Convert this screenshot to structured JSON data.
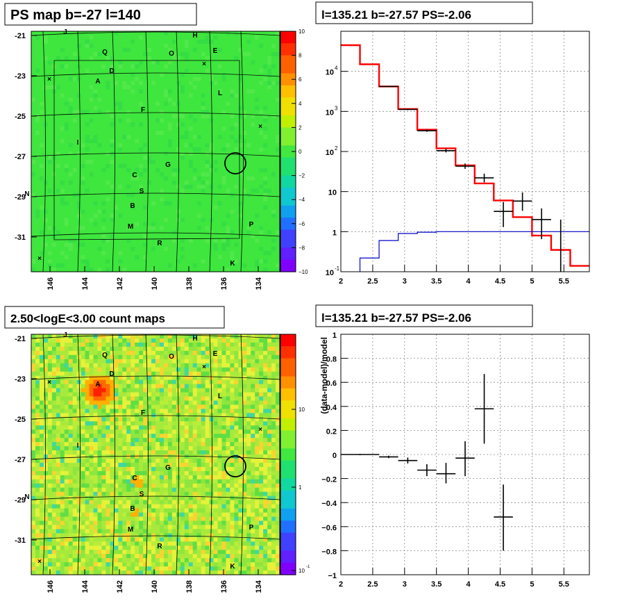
{
  "panels": {
    "ps_map": {
      "title": "PS map b=-27 l=140",
      "colorbar": {
        "min": -10,
        "max": 10,
        "ticks": [
          "10",
          "8",
          "6",
          "4",
          "2",
          "0",
          "−2",
          "−4",
          "−6",
          "−8",
          "−10"
        ]
      }
    },
    "count_map": {
      "title": "2.50<logE<3.00 count maps",
      "colorbar": {
        "ticks": [
          "10",
          "1",
          "10"
        ],
        "tick_exp": "-1"
      }
    },
    "spectrum": {
      "title": "l=135.21 b=-27.57 PS=-2.06"
    },
    "residual": {
      "title": "l=135.21 b=-27.57 PS=-2.06",
      "ylabel": "(data-model)/model"
    }
  },
  "map_axes": {
    "y_ticks": [
      "-21",
      "-23",
      "-25",
      "-27",
      "-29",
      "-31"
    ],
    "x_ticks": [
      "146",
      "144",
      "142",
      "140",
      "138",
      "136",
      "134"
    ]
  },
  "sources": [
    "J",
    "H",
    "Q",
    "O",
    "E",
    "D",
    "A",
    "L",
    "F",
    "I",
    "G",
    "C",
    "N",
    "S",
    "B",
    "M",
    "P",
    "R",
    "K"
  ],
  "colors": {
    "map_green": "#3ee63e",
    "data": "#000000",
    "model": "#ff0000",
    "background_model": "#0000cc",
    "hot": "#ff2000"
  },
  "chart_data": [
    {
      "type": "line",
      "title": "l=135.21 b=-27.57 PS=-2.06",
      "xlabel": "",
      "ylabel": "",
      "xlim": [
        2,
        5.9
      ],
      "ylim": [
        0.1,
        100000
      ],
      "yscale": "log",
      "x_ticks": [
        "2",
        "2.5",
        "3",
        "3.5",
        "4",
        "4.5",
        "5",
        "5.5"
      ],
      "y_ticks": [
        "10^-1",
        "1",
        "10",
        "10^2",
        "10^3",
        "10^4"
      ],
      "grid": true,
      "series": [
        {
          "role": "model",
          "bin_edges": [
            2.0,
            2.3,
            2.6,
            2.9,
            3.2,
            3.5,
            3.8,
            4.1,
            4.4,
            4.7,
            5.0,
            5.3,
            5.6,
            5.9
          ],
          "values": [
            45000,
            15000,
            4200,
            1150,
            350,
            120,
            45,
            16,
            6,
            2.3,
            0.8,
            0.35,
            0.14
          ]
        },
        {
          "role": "background",
          "bin_edges": [
            2.3,
            2.6,
            2.9,
            3.2,
            3.5,
            3.8,
            4.1,
            4.4,
            4.7,
            5.0,
            5.3,
            5.6,
            5.9
          ],
          "values": [
            0.22,
            0.6,
            0.9,
            0.97,
            1.0,
            1.0,
            1.0,
            1.0,
            1.0,
            1.0,
            1.0,
            1.0
          ]
        },
        {
          "role": "data",
          "points": [
            {
              "x": 2.75,
              "y": 4200,
              "ylo": 4150,
              "yhi": 4250,
              "xerr": 0.15
            },
            {
              "x": 3.05,
              "y": 1120,
              "ylo": 1080,
              "yhi": 1160,
              "xerr": 0.15
            },
            {
              "x": 3.35,
              "y": 330,
              "ylo": 310,
              "yhi": 350,
              "xerr": 0.15
            },
            {
              "x": 3.65,
              "y": 105,
              "ylo": 95,
              "yhi": 116,
              "xerr": 0.15
            },
            {
              "x": 3.95,
              "y": 43,
              "ylo": 37,
              "yhi": 50,
              "xerr": 0.15
            },
            {
              "x": 4.25,
              "y": 22,
              "ylo": 17,
              "yhi": 28,
              "xerr": 0.15
            },
            {
              "x": 4.55,
              "y": 3.2,
              "ylo": 1.3,
              "yhi": 5.5,
              "xerr": 0.15
            },
            {
              "x": 4.85,
              "y": 5.8,
              "ylo": 3.3,
              "yhi": 9.5,
              "xerr": 0.15
            },
            {
              "x": 5.15,
              "y": 2.0,
              "ylo": 0.65,
              "yhi": 3.8,
              "xerr": 0.15
            },
            {
              "x": 5.45,
              "y": 0.5,
              "ylo": 0.1,
              "yhi": 2.0,
              "xerr": 0.0
            }
          ]
        }
      ]
    },
    {
      "type": "scatter",
      "title": "l=135.21 b=-27.57 PS=-2.06",
      "xlabel": "",
      "ylabel": "(data-model)/model",
      "xlim": [
        2,
        5.9
      ],
      "ylim": [
        -1,
        1
      ],
      "x_ticks": [
        "2",
        "2.5",
        "3",
        "3.5",
        "4",
        "4.5",
        "5",
        "5.5"
      ],
      "y_ticks": [
        "−1",
        "−0.8",
        "−0.6",
        "−0.4",
        "−0.2",
        "0",
        "0.2",
        "0.4",
        "0.6",
        "0.8",
        "1"
      ],
      "grid": true,
      "series": [
        {
          "role": "residual",
          "points": [
            {
              "x": 2.3,
              "y": 0.0,
              "ylo": -0.005,
              "yhi": 0.005,
              "xerr": 0.3
            },
            {
              "x": 2.75,
              "y": -0.02,
              "ylo": -0.03,
              "yhi": -0.01,
              "xerr": 0.15
            },
            {
              "x": 3.05,
              "y": -0.05,
              "ylo": -0.075,
              "yhi": -0.025,
              "xerr": 0.15
            },
            {
              "x": 3.35,
              "y": -0.13,
              "ylo": -0.18,
              "yhi": -0.08,
              "xerr": 0.15
            },
            {
              "x": 3.65,
              "y": -0.16,
              "ylo": -0.24,
              "yhi": -0.07,
              "xerr": 0.15
            },
            {
              "x": 3.95,
              "y": -0.03,
              "ylo": -0.18,
              "yhi": 0.11,
              "xerr": 0.15
            },
            {
              "x": 4.25,
              "y": 0.38,
              "ylo": 0.09,
              "yhi": 0.67,
              "xerr": 0.15
            },
            {
              "x": 4.55,
              "y": -0.52,
              "ylo": -0.8,
              "yhi": -0.25,
              "xerr": 0.15
            }
          ]
        }
      ]
    }
  ]
}
